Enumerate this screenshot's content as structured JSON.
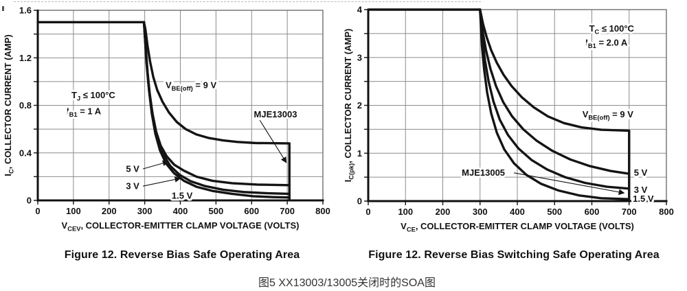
{
  "page": {
    "caption_cn": "图5 XX13003/13005关闭时的SOA图"
  },
  "colors": {
    "curve": "#141414",
    "grid": "#8b8b8b",
    "axis": "#111111",
    "frame": "#6e6e6e",
    "text": "#111111"
  },
  "chart_data": [
    {
      "type": "line",
      "device": "MJE13003",
      "title": "Figure 12. Reverse Bias Safe Operating Area",
      "xlabel": "V_{CEV}, COLLECTOR-EMITTER CLAMP VOLTAGE (VOLTS)",
      "ylabel": "I_{C}, COLLECTOR CURRENT (AMP)",
      "xlim": [
        0,
        800
      ],
      "ylim": [
        0,
        1.6
      ],
      "xtick_step": 100,
      "ygrid_step": 0.2,
      "xtick_labels": [
        "0",
        "100",
        "200",
        "300",
        "400",
        "500",
        "600",
        "700",
        "800"
      ],
      "ytick_labels": [
        {
          "v": 0,
          "t": "0"
        },
        {
          "v": 0.4,
          "t": "0.4"
        },
        {
          "v": 0.8,
          "t": "0.8"
        },
        {
          "v": 1.2,
          "t": "1.2"
        },
        {
          "v": 1.6,
          "t": "1.6"
        }
      ],
      "grid": true,
      "legend": "none",
      "series": [
        {
          "name": "VBE(off) = 9 V",
          "points": [
            [
              0,
              1.5
            ],
            [
              298,
              1.5
            ],
            [
              302,
              1.44
            ],
            [
              308,
              1.3
            ],
            [
              315,
              1.17
            ],
            [
              324,
              1.04
            ],
            [
              335,
              0.93
            ],
            [
              350,
              0.83
            ],
            [
              368,
              0.74
            ],
            [
              390,
              0.66
            ],
            [
              415,
              0.6
            ],
            [
              445,
              0.555
            ],
            [
              480,
              0.525
            ],
            [
              520,
              0.505
            ],
            [
              560,
              0.492
            ],
            [
              610,
              0.483
            ],
            [
              706,
              0.48
            ]
          ]
        },
        {
          "name": "5 V",
          "points": [
            [
              298,
              1.5
            ],
            [
              303,
              1.28
            ],
            [
              308,
              1.08
            ],
            [
              314,
              0.9
            ],
            [
              322,
              0.73
            ],
            [
              332,
              0.58
            ],
            [
              345,
              0.46
            ],
            [
              362,
              0.37
            ],
            [
              383,
              0.3
            ],
            [
              410,
              0.25
            ],
            [
              445,
              0.2
            ],
            [
              490,
              0.165
            ],
            [
              545,
              0.145
            ],
            [
              615,
              0.133
            ],
            [
              706,
              0.128
            ]
          ]
        },
        {
          "name": "3 V",
          "points": [
            [
              298,
              1.5
            ],
            [
              304,
              1.22
            ],
            [
              310,
              1.0
            ],
            [
              317,
              0.81
            ],
            [
              326,
              0.64
            ],
            [
              338,
              0.5
            ],
            [
              353,
              0.38
            ],
            [
              372,
              0.29
            ],
            [
              398,
              0.215
            ],
            [
              430,
              0.16
            ],
            [
              470,
              0.12
            ],
            [
              520,
              0.09
            ],
            [
              580,
              0.07
            ],
            [
              645,
              0.06
            ],
            [
              706,
              0.055
            ]
          ]
        },
        {
          "name": "1.5 V",
          "points": [
            [
              298,
              1.5
            ],
            [
              305,
              1.16
            ],
            [
              312,
              0.93
            ],
            [
              320,
              0.73
            ],
            [
              330,
              0.56
            ],
            [
              343,
              0.42
            ],
            [
              360,
              0.31
            ],
            [
              382,
              0.23
            ],
            [
              410,
              0.165
            ],
            [
              445,
              0.115
            ],
            [
              490,
              0.08
            ],
            [
              545,
              0.055
            ],
            [
              605,
              0.035
            ],
            [
              660,
              0.028
            ],
            [
              706,
              0.025
            ]
          ]
        }
      ],
      "terminator": {
        "x": 706,
        "y_top": 0.48
      },
      "annotations": [
        {
          "text": "T_{J} ≤ 100°C",
          "x": 156,
          "y": 0.86,
          "anchor": "middle"
        },
        {
          "text": "I_{B1} = 1 A",
          "x": 81,
          "y": 0.725,
          "anchor": "start"
        },
        {
          "text": "V_{BE(off)} = 9 V",
          "x": 430,
          "y": 0.945,
          "anchor": "middle"
        },
        {
          "text": "MJE13003",
          "x": 667,
          "y": 0.7,
          "anchor": "middle",
          "arrow": [
            [
              623,
              0.675
            ],
            [
              697,
              0.32
            ]
          ]
        },
        {
          "text": "5 V",
          "x": 285,
          "y": 0.24,
          "anchor": "end",
          "arrow": [
            [
              295,
              0.265
            ],
            [
              365,
              0.325
            ]
          ]
        },
        {
          "text": "3 V",
          "x": 285,
          "y": 0.095,
          "anchor": "end",
          "arrow": [
            [
              295,
              0.12
            ],
            [
              399,
              0.185
            ]
          ]
        },
        {
          "text": "1.5 V",
          "x": 405,
          "y": 0.015,
          "anchor": "middle"
        }
      ]
    },
    {
      "type": "line",
      "device": "MJE13005",
      "title": "Figure 12. Reverse Bias Switching Safe Operating Area",
      "xlabel": "V_{CE}, COLLECTOR-EMITTER CLAMP VOLTAGE (VOLTS)",
      "ylabel": "I_{C(pk)}, COLLECTOR CURRENT (AMP)",
      "xlim": [
        0,
        800
      ],
      "ylim": [
        0,
        4
      ],
      "xtick_step": 100,
      "ygrid_step": 0.5,
      "xtick_labels": [
        "0",
        "100",
        "200",
        "300",
        "400",
        "500",
        "600",
        "700",
        "800"
      ],
      "ytick_labels": [
        {
          "v": 0,
          "t": "0"
        },
        {
          "v": 1,
          "t": "1"
        },
        {
          "v": 2,
          "t": "2"
        },
        {
          "v": 3,
          "t": "3"
        },
        {
          "v": 4,
          "t": "4"
        }
      ],
      "grid": true,
      "legend": "none",
      "series": [
        {
          "name": "VBE(off) = 9 V",
          "points": [
            [
              0,
              4
            ],
            [
              300,
              4
            ],
            [
              308,
              3.7
            ],
            [
              318,
              3.42
            ],
            [
              330,
              3.15
            ],
            [
              345,
              2.89
            ],
            [
              363,
              2.64
            ],
            [
              385,
              2.4
            ],
            [
              412,
              2.17
            ],
            [
              444,
              1.96
            ],
            [
              482,
              1.77
            ],
            [
              525,
              1.63
            ],
            [
              572,
              1.54
            ],
            [
              625,
              1.49
            ],
            [
              700,
              1.47
            ]
          ]
        },
        {
          "name": "5 V",
          "points": [
            [
              300,
              4
            ],
            [
              307,
              3.55
            ],
            [
              316,
              3.15
            ],
            [
              328,
              2.76
            ],
            [
              343,
              2.4
            ],
            [
              362,
              2.07
            ],
            [
              386,
              1.77
            ],
            [
              416,
              1.5
            ],
            [
              452,
              1.26
            ],
            [
              494,
              1.05
            ],
            [
              542,
              0.87
            ],
            [
              595,
              0.73
            ],
            [
              650,
              0.63
            ],
            [
              700,
              0.57
            ]
          ]
        },
        {
          "name": "3 V",
          "points": [
            [
              300,
              4
            ],
            [
              306,
              3.4
            ],
            [
              313,
              2.95
            ],
            [
              323,
              2.5
            ],
            [
              336,
              2.08
            ],
            [
              353,
              1.7
            ],
            [
              375,
              1.38
            ],
            [
              403,
              1.1
            ],
            [
              438,
              0.86
            ],
            [
              480,
              0.66
            ],
            [
              528,
              0.5
            ],
            [
              582,
              0.38
            ],
            [
              640,
              0.3
            ],
            [
              700,
              0.26
            ]
          ]
        },
        {
          "name": "1.5 V",
          "points": [
            [
              300,
              4
            ],
            [
              305,
              3.25
            ],
            [
              311,
              2.75
            ],
            [
              319,
              2.27
            ],
            [
              330,
              1.83
            ],
            [
              345,
              1.43
            ],
            [
              365,
              1.08
            ],
            [
              391,
              0.79
            ],
            [
              424,
              0.55
            ],
            [
              464,
              0.36
            ],
            [
              511,
              0.22
            ],
            [
              565,
              0.12
            ],
            [
              625,
              0.06
            ],
            [
              700,
              0.04
            ]
          ]
        }
      ],
      "terminator": {
        "x": 700,
        "y_top": 1.47
      },
      "annotations": [
        {
          "text": "T_{C} ≤ 100°C",
          "x": 653,
          "y": 3.54,
          "anchor": "middle"
        },
        {
          "text": "I_{B1} = 2.0 A",
          "x": 583,
          "y": 3.25,
          "anchor": "start"
        },
        {
          "text": "V_{BE(off)} = 9 V",
          "x": 643,
          "y": 1.75,
          "anchor": "middle"
        },
        {
          "text": "MJE13005",
          "x": 251,
          "y": 0.53,
          "anchor": "start",
          "arrow": [
            [
              391,
              0.59
            ],
            [
              686,
              0.17
            ]
          ]
        },
        {
          "text": "5 V",
          "x": 713,
          "y": 0.53,
          "anchor": "start"
        },
        {
          "text": "3 V",
          "x": 713,
          "y": 0.172,
          "anchor": "start"
        },
        {
          "text": "1.5 V",
          "x": 710,
          "y": -0.014,
          "anchor": "start"
        }
      ]
    }
  ]
}
